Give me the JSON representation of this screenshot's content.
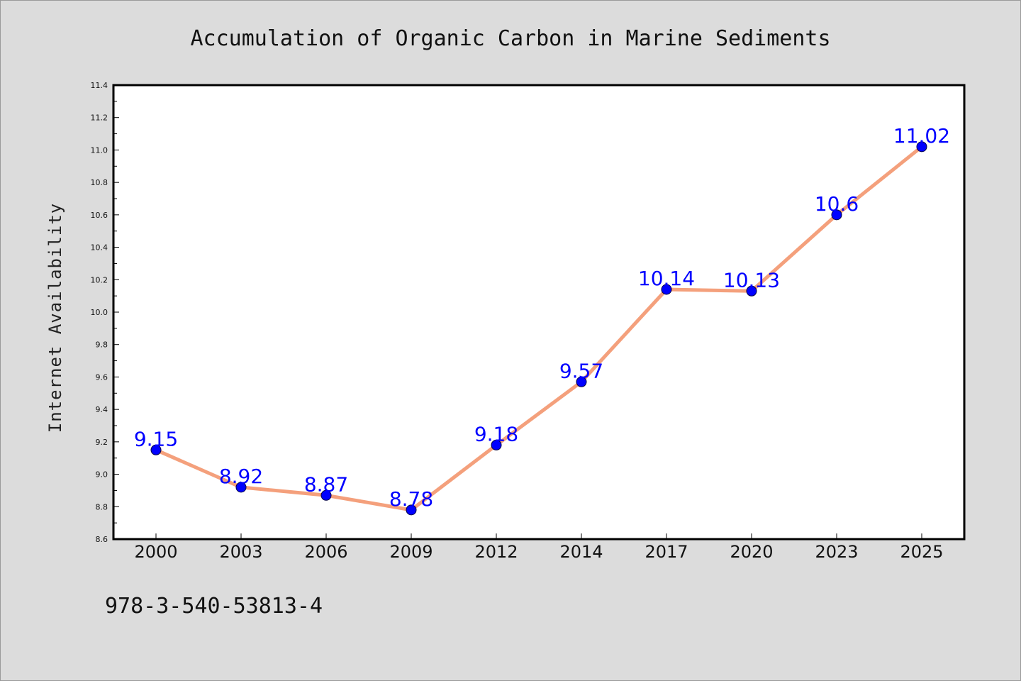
{
  "chart_data": {
    "type": "line",
    "title": "Accumulation of Organic Carbon in Marine Sediments",
    "xlabel": "",
    "ylabel": "Internet Availability",
    "categories": [
      "2000",
      "2003",
      "2006",
      "2009",
      "2012",
      "2014",
      "2017",
      "2020",
      "2023",
      "2025"
    ],
    "series": [
      {
        "values": [
          9.15,
          8.92,
          8.87,
          8.78,
          9.18,
          9.57,
          10.14,
          10.13,
          10.6,
          11.02
        ]
      }
    ],
    "data_labels": [
      "9.15",
      "8.92",
      "8.87",
      "8.78",
      "9.18",
      "9.57",
      "10.14",
      "10.13",
      "10.6",
      "11.02"
    ],
    "ylim": [
      8.6,
      11.4
    ],
    "yticks": [
      "8.6",
      "8.8",
      "9.0",
      "9.2",
      "9.4",
      "9.6",
      "9.8",
      "10.0",
      "10.2",
      "10.4",
      "10.6",
      "10.8",
      "11.0",
      "11.2",
      "11.4"
    ],
    "grid": false,
    "line_color": "#f4a07c",
    "marker_color": "#0000ff",
    "label_color": "#0000ff"
  },
  "footer": {
    "isbn": "978-3-540-53813-4"
  }
}
